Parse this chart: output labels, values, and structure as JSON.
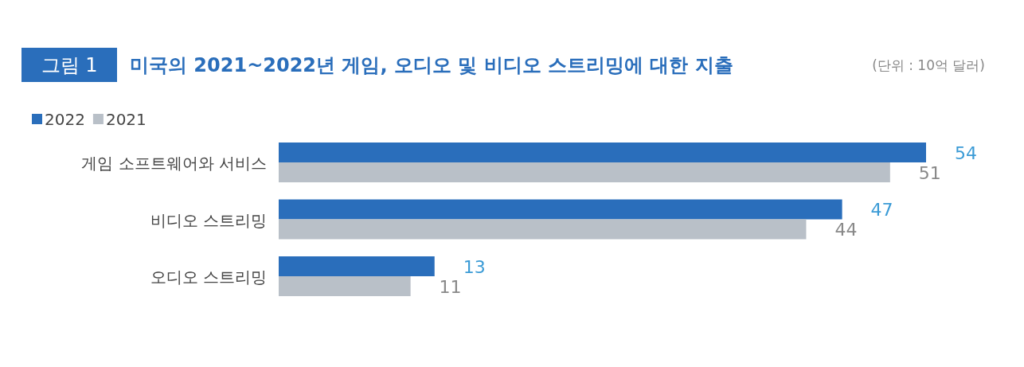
{
  "chart_data": {
    "type": "bar",
    "orientation": "horizontal",
    "title": "미국의 2021~2022년 게임, 오디오 및 비디오 스트리밍에 대한 지출",
    "annotations": [
      "그림 1",
      "(단위 : 10억 달러)"
    ],
    "categories": [
      "게임 소프트웨어와 서비스",
      "비디오 스트리밍",
      "오디오 스트리밍"
    ],
    "series": [
      {
        "name": "2022",
        "color": "#2a6ebb",
        "values": [
          54,
          47,
          13
        ]
      },
      {
        "name": "2021",
        "color": "#b9c0c8",
        "values": [
          51,
          44,
          11
        ]
      }
    ],
    "data_labels": true,
    "legend": "top left"
  }
}
